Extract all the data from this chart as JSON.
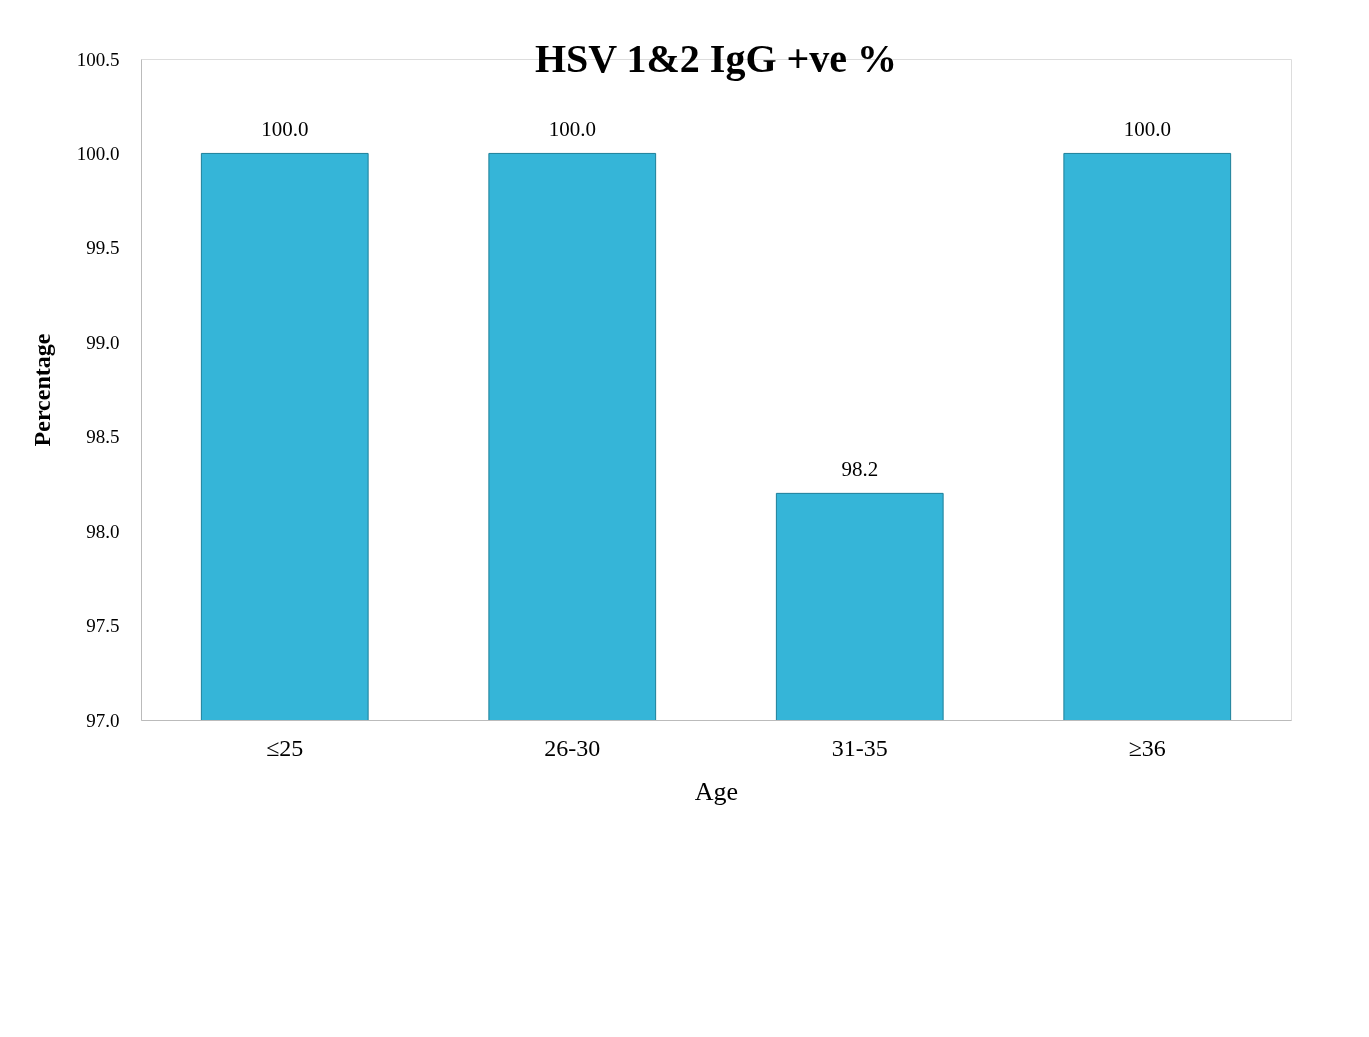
{
  "chart_data": {
    "type": "bar",
    "title": "HSV 1&2 IgG +ve %",
    "xlabel": "Age",
    "ylabel": "Percentage",
    "categories": [
      "≤25",
      "26-30",
      "31-35",
      "≥36"
    ],
    "values": [
      100.0,
      100.0,
      98.2,
      100.0
    ],
    "value_labels": [
      "100.0",
      "100.0",
      "98.2",
      "100.0"
    ],
    "color": "#35b5d8",
    "ylim": [
      97.0,
      100.5
    ],
    "yticks": [
      {
        "value": 97.0,
        "label": "97.0"
      },
      {
        "value": 97.5,
        "label": "97.5"
      },
      {
        "value": 98.0,
        "label": "98.0"
      },
      {
        "value": 98.5,
        "label": "98.5"
      },
      {
        "value": 99.0,
        "label": "99.0"
      },
      {
        "value": 99.5,
        "label": "99.5"
      },
      {
        "value": 100.0,
        "label": "100.0"
      },
      {
        "value": 100.5,
        "label": "100.5"
      }
    ],
    "grid": false
  }
}
